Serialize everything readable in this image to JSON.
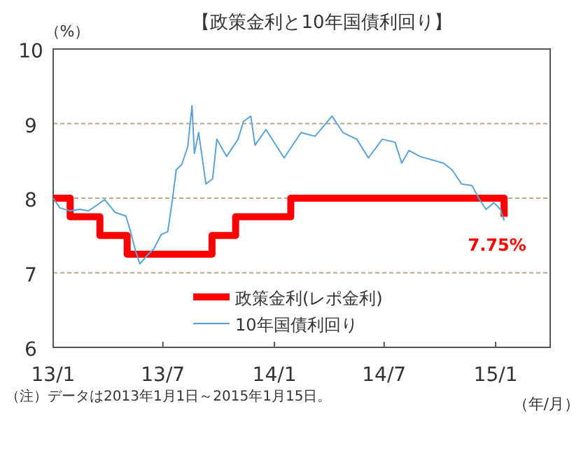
{
  "chart_data": {
    "type": "line",
    "title": "【政策金利と10年国債利回り】",
    "ylabel": "（%）",
    "xlabel": "（年/月）",
    "xlim": [
      "2013-01-01",
      "2015-04-01"
    ],
    "xticks": [
      {
        "value": "2013-01-01",
        "label": "13/1"
      },
      {
        "value": "2013-07-01",
        "label": "13/7"
      },
      {
        "value": "2014-01-01",
        "label": "14/1"
      },
      {
        "value": "2014-07-01",
        "label": "14/7"
      },
      {
        "value": "2015-01-01",
        "label": "15/1"
      }
    ],
    "ylim": [
      6,
      10
    ],
    "yticks": [
      6,
      7,
      8,
      9,
      10
    ],
    "grid": "y",
    "legend": "bottom",
    "series": [
      {
        "name": "政策金利(レポ金利)",
        "type": "step",
        "color": "#ff0000",
        "x": [
          "2013-01-01",
          "2013-01-29",
          "2013-03-19",
          "2013-05-03",
          "2013-09-20",
          "2013-10-29",
          "2014-01-28",
          "2015-01-15"
        ],
        "values": [
          8,
          7.75,
          7.5,
          7.25,
          7.5,
          7.75,
          8,
          7.75
        ]
      },
      {
        "name": "10年国債利回り",
        "type": "line",
        "color": "#5ba3d9",
        "x": [
          "2013-01-01",
          "2013-01-12",
          "2013-01-29",
          "2013-02-14",
          "2013-02-28",
          "2013-03-11",
          "2013-03-27",
          "2013-04-13",
          "2013-05-01",
          "2013-05-08",
          "2013-05-17",
          "2013-05-24",
          "2013-06-07",
          "2013-06-16",
          "2013-06-28",
          "2013-07-09",
          "2013-07-16",
          "2013-07-23",
          "2013-08-01",
          "2013-08-11",
          "2013-08-18",
          "2013-08-22",
          "2013-08-29",
          "2013-09-10",
          "2013-09-21",
          "2013-09-28",
          "2013-10-14",
          "2013-11-02",
          "2013-11-11",
          "2013-11-23",
          "2013-11-30",
          "2013-12-18",
          "2014-01-17",
          "2014-02-14",
          "2014-03-09",
          "2014-04-06",
          "2014-04-24",
          "2014-05-17",
          "2014-06-05",
          "2014-06-28",
          "2014-07-19",
          "2014-07-30",
          "2014-08-11",
          "2014-08-29",
          "2014-10-07",
          "2014-10-21",
          "2014-11-06",
          "2014-11-23",
          "2014-12-04",
          "2014-12-16",
          "2014-12-29",
          "2015-01-09",
          "2015-01-15"
        ],
        "values": [
          8.0,
          7.87,
          7.83,
          7.85,
          7.83,
          7.89,
          7.98,
          7.81,
          7.76,
          7.57,
          7.29,
          7.12,
          7.25,
          7.32,
          7.51,
          7.55,
          7.94,
          8.38,
          8.45,
          8.69,
          9.24,
          8.6,
          8.88,
          8.19,
          8.26,
          8.79,
          8.56,
          8.79,
          9.03,
          9.1,
          8.71,
          8.92,
          8.54,
          8.88,
          8.83,
          9.1,
          8.88,
          8.79,
          8.54,
          8.79,
          8.75,
          8.47,
          8.64,
          8.56,
          8.47,
          8.38,
          8.19,
          8.17,
          8.0,
          7.85,
          7.94,
          7.85,
          7.7
        ]
      }
    ],
    "annotations": [
      {
        "text": "7.75%",
        "x": "2015-01-15",
        "y": 7.75
      },
      "（注）データは2013年1月1日～2015年1月15日。"
    ]
  }
}
